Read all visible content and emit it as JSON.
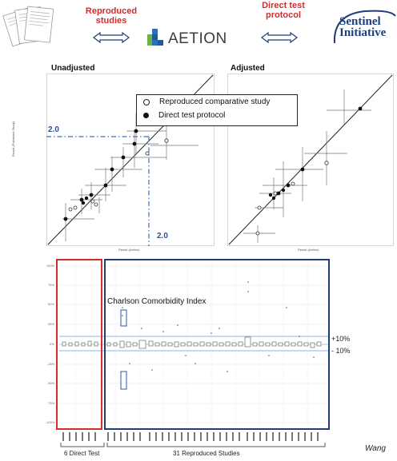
{
  "header": {
    "reproduced_label": "Reproduced\nstudies",
    "aetion_label": "AETION",
    "direct_label": "Direct test\nprotocol",
    "sentinel_label": "Sentinel\nInitiative"
  },
  "scatter": {
    "left_title": "Unadjusted",
    "right_title": "Adjusted",
    "y_axis_label": "Result (Published Study)",
    "x_axis_label": "Result (Aetion)",
    "threshold_y": "2.0",
    "threshold_x": "2.0",
    "legend": [
      {
        "label": "Reproduced comparative study",
        "marker": "hollow"
      },
      {
        "label": "Direct test protocol",
        "marker": "filled"
      }
    ]
  },
  "boxplot": {
    "charlson_label": "Charlson Comorbidity Index",
    "plus_label": "+10%",
    "minus_label": "- 10%",
    "direct_count_label": "6 Direct Test",
    "reproduced_count_label": "31 Reproduced Studies",
    "y_ticks": [
      "100%",
      "75%",
      "50%",
      "25%",
      "0%",
      "-25%",
      "-50%",
      "-75%",
      "-100%"
    ]
  },
  "footer": {
    "author": "Wang"
  },
  "colors": {
    "red": "#d42b2b",
    "navy": "#1f3d7a",
    "dash_blue": "#3b6fb6",
    "aetion_green": "#6cb33f",
    "aetion_blue": "#2a72b5"
  }
}
